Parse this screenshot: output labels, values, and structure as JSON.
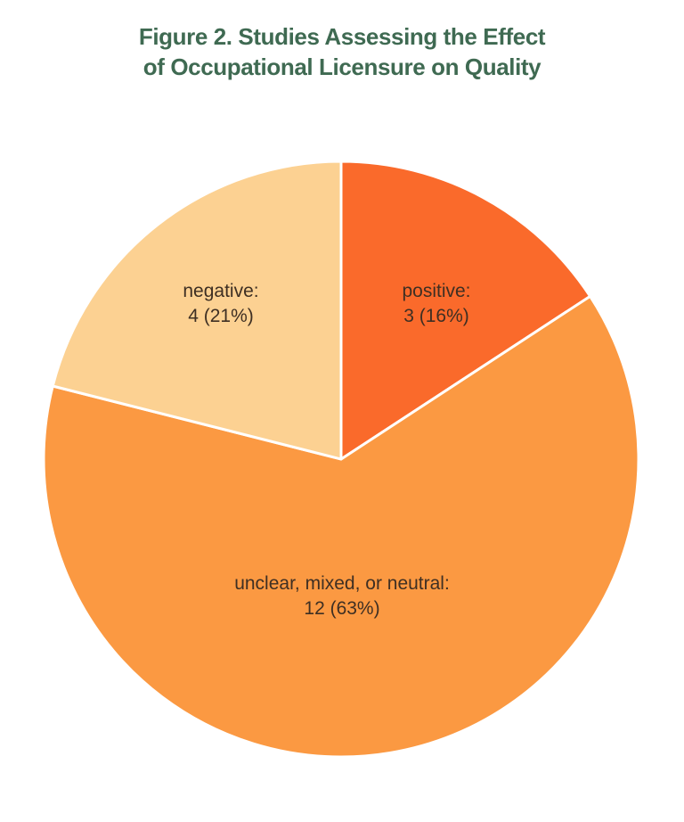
{
  "header": {
    "title_line1": "Figure 2. Studies Assessing the Effect",
    "title_line2": "of Occupational Licensure on Quality",
    "title_color": "#3F6A52"
  },
  "chart_data": {
    "type": "pie",
    "title": "Figure 2. Studies Assessing the Effect of Occupational Licensure on Quality",
    "start_angle": "top",
    "direction": "clockwise",
    "divider_color": "#ffffff",
    "label_color": "#3E2F23",
    "slices": [
      {
        "category": "positive",
        "value": 3,
        "percent": 16,
        "color": "#FA6A2B"
      },
      {
        "category": "unclear, mixed, or neutral",
        "value": 12,
        "percent": 63,
        "color": "#FB9942"
      },
      {
        "category": "negative",
        "value": 4,
        "percent": 21,
        "color": "#FCD192"
      }
    ]
  }
}
